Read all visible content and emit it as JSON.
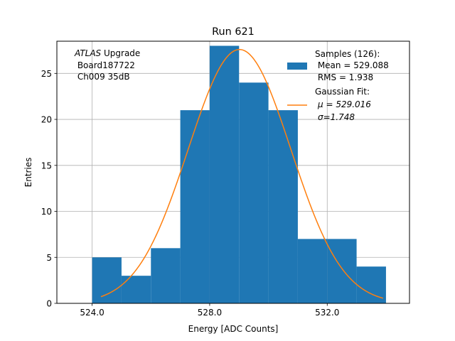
{
  "chart_data": {
    "type": "bar",
    "title": "Run 621",
    "xlabel": "Energy [ADC Counts]",
    "ylabel": "Entries",
    "xlim": [
      522.8,
      534.8
    ],
    "ylim": [
      0,
      28.5
    ],
    "grid": true,
    "xticks": [
      524.0,
      528.0,
      532.0
    ],
    "xtick_labels": [
      "524.0",
      "528.0",
      "532.0"
    ],
    "yticks": [
      0,
      5,
      10,
      15,
      20,
      25
    ],
    "bin_edges": [
      524,
      525,
      526,
      527,
      528,
      529,
      530,
      531,
      532,
      533,
      534
    ],
    "counts": [
      5,
      3,
      6,
      21,
      28,
      24,
      21,
      7,
      7,
      4
    ],
    "annotation": {
      "italic": "ATLAS",
      "rest": " Upgrade",
      "line2": " Board187722",
      "line3": " Ch009 35dB"
    },
    "legend": {
      "position": "top-right",
      "histogram": [
        "Samples (126):",
        " Mean = 529.088",
        " RMS = 1.938"
      ],
      "fit": [
        "Gaussian Fit:",
        "μ = 529.016",
        "σ=1.748"
      ]
    },
    "fit": {
      "type": "gaussian",
      "amplitude": 27.6,
      "mu": 529.016,
      "sigma": 1.748,
      "xrange": [
        524.3,
        533.9
      ]
    },
    "colors": {
      "histogram": "#1f77b4",
      "fit": "#ff7f0e",
      "grid": "#b0b0b0"
    }
  }
}
